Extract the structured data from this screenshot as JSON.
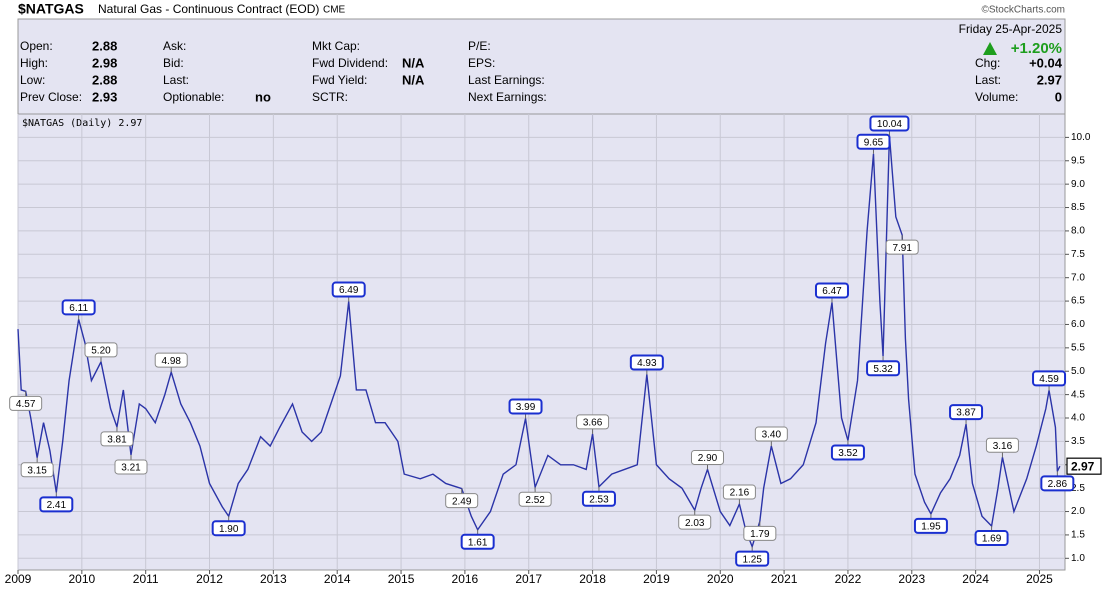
{
  "header": {
    "symbol": "$NATGAS",
    "name": "Natural Gas - Continuous Contract (EOD)",
    "exchange": "CME",
    "source": "©StockCharts.com",
    "date": "Friday  25-Apr-2025",
    "change_pct": "+1.20%",
    "fields": [
      [
        {
          "label": "Open:",
          "value": "2.88"
        },
        {
          "label": "High:",
          "value": "2.98"
        },
        {
          "label": "Low:",
          "value": "2.88"
        },
        {
          "label": "Prev Close:",
          "value": "2.93"
        }
      ],
      [
        {
          "label": "Ask:"
        },
        {
          "label": "Bid:"
        },
        {
          "label": "Last:"
        },
        {
          "label": "Optionable:",
          "value": "no"
        }
      ],
      [
        {
          "label": "Mkt Cap:"
        },
        {
          "label": "Fwd Dividend:",
          "value": "N/A"
        },
        {
          "label": "Fwd Yield:",
          "value": "N/A"
        },
        {
          "label": "SCTR:"
        }
      ],
      [
        {
          "label": "P/E:"
        },
        {
          "label": "EPS:"
        },
        {
          "label": "Last Earnings:"
        },
        {
          "label": "Next Earnings:"
        }
      ]
    ],
    "right_fields": [
      {
        "label": "Chg:",
        "value": "+0.04"
      },
      {
        "label": "Last:",
        "value": "2.97"
      },
      {
        "label": "Volume:",
        "value": "0"
      }
    ]
  },
  "chart_data": {
    "type": "line",
    "last_label": "2.97",
    "series": [
      {
        "name": "$NATGAS (Daily)",
        "color": "#2b34a8",
        "x": [
          2009.0,
          2009.05,
          2009.12,
          2009.2,
          2009.3,
          2009.4,
          2009.5,
          2009.6,
          2009.7,
          2009.8,
          2009.95,
          2010.05,
          2010.15,
          2010.3,
          2010.45,
          2010.55,
          2010.65,
          2010.77,
          2010.9,
          2011.0,
          2011.15,
          2011.3,
          2011.4,
          2011.55,
          2011.7,
          2011.85,
          2012.0,
          2012.2,
          2012.3,
          2012.45,
          2012.6,
          2012.8,
          2012.95,
          2013.1,
          2013.3,
          2013.45,
          2013.6,
          2013.75,
          2013.9,
          2014.05,
          2014.18,
          2014.3,
          2014.45,
          2014.6,
          2014.75,
          2014.95,
          2015.05,
          2015.3,
          2015.5,
          2015.7,
          2015.95,
          2016.1,
          2016.2,
          2016.4,
          2016.6,
          2016.8,
          2016.95,
          2017.1,
          2017.3,
          2017.5,
          2017.7,
          2017.9,
          2018.0,
          2018.1,
          2018.3,
          2018.5,
          2018.7,
          2018.85,
          2019.0,
          2019.2,
          2019.4,
          2019.6,
          2019.7,
          2019.8,
          2020.0,
          2020.15,
          2020.3,
          2020.4,
          2020.5,
          2020.62,
          2020.68,
          2020.8,
          2020.95,
          2021.1,
          2021.3,
          2021.5,
          2021.65,
          2021.75,
          2021.9,
          2022.0,
          2022.15,
          2022.3,
          2022.4,
          2022.5,
          2022.55,
          2022.65,
          2022.75,
          2022.85,
          2022.9,
          2022.95,
          2023.05,
          2023.2,
          2023.3,
          2023.45,
          2023.6,
          2023.75,
          2023.85,
          2023.95,
          2024.1,
          2024.25,
          2024.35,
          2024.42,
          2024.6,
          2024.8,
          2024.95,
          2025.1,
          2025.15,
          2025.25,
          2025.28,
          2025.32
        ],
        "values": [
          5.9,
          4.6,
          4.57,
          4.0,
          3.15,
          3.9,
          3.3,
          2.41,
          3.5,
          4.8,
          6.11,
          5.6,
          4.8,
          5.2,
          4.2,
          3.81,
          4.6,
          3.21,
          4.3,
          4.2,
          3.9,
          4.5,
          4.98,
          4.3,
          3.9,
          3.4,
          2.6,
          2.1,
          1.9,
          2.6,
          2.9,
          3.6,
          3.4,
          3.8,
          4.3,
          3.7,
          3.5,
          3.7,
          4.3,
          4.9,
          6.49,
          4.6,
          4.6,
          3.9,
          3.9,
          3.5,
          2.8,
          2.7,
          2.8,
          2.6,
          2.49,
          1.9,
          1.61,
          2.0,
          2.8,
          3.0,
          3.99,
          2.52,
          3.2,
          3.0,
          3.0,
          2.9,
          3.66,
          2.53,
          2.8,
          2.9,
          3.0,
          4.93,
          3.0,
          2.7,
          2.5,
          2.03,
          2.5,
          2.9,
          2.0,
          1.7,
          2.16,
          1.6,
          1.25,
          1.79,
          2.5,
          3.4,
          2.6,
          2.7,
          3.0,
          3.9,
          5.6,
          6.47,
          4.0,
          3.52,
          4.8,
          8.0,
          9.65,
          6.5,
          5.32,
          10.04,
          8.3,
          7.91,
          5.7,
          4.4,
          2.8,
          2.2,
          1.95,
          2.4,
          2.7,
          3.2,
          3.87,
          2.6,
          1.9,
          1.69,
          2.5,
          3.16,
          2.0,
          2.7,
          3.4,
          4.2,
          4.59,
          3.8,
          2.86,
          2.97
        ]
      }
    ],
    "annotations": [
      {
        "index": 2,
        "label": "4.57",
        "boxed": false
      },
      {
        "index": 4,
        "label": "3.15",
        "boxed": false
      },
      {
        "index": 7,
        "label": "2.41",
        "boxed": true
      },
      {
        "index": 10,
        "label": "6.11",
        "boxed": true
      },
      {
        "index": 13,
        "label": "5.20",
        "boxed": false
      },
      {
        "index": 15,
        "label": "3.81",
        "boxed": false
      },
      {
        "index": 17,
        "label": "3.21",
        "boxed": false
      },
      {
        "index": 22,
        "label": "4.98",
        "boxed": false
      },
      {
        "index": 28,
        "label": "1.90",
        "boxed": true
      },
      {
        "index": 40,
        "label": "6.49",
        "boxed": true
      },
      {
        "index": 50,
        "label": "2.49",
        "boxed": false
      },
      {
        "index": 52,
        "label": "1.61",
        "boxed": true
      },
      {
        "index": 56,
        "label": "3.99",
        "boxed": true
      },
      {
        "index": 57,
        "label": "2.52",
        "boxed": false
      },
      {
        "index": 62,
        "label": "3.66",
        "boxed": false
      },
      {
        "index": 63,
        "label": "2.53",
        "boxed": true
      },
      {
        "index": 67,
        "label": "4.93",
        "boxed": true
      },
      {
        "index": 71,
        "label": "2.03",
        "boxed": false
      },
      {
        "index": 73,
        "label": "2.90",
        "boxed": false
      },
      {
        "index": 76,
        "label": "2.16",
        "boxed": false
      },
      {
        "index": 78,
        "label": "1.25",
        "boxed": true
      },
      {
        "index": 79,
        "label": "1.79",
        "boxed": false
      },
      {
        "index": 81,
        "label": "3.40",
        "boxed": false
      },
      {
        "index": 87,
        "label": "6.47",
        "boxed": true
      },
      {
        "index": 89,
        "label": "3.52",
        "boxed": true
      },
      {
        "index": 92,
        "label": "9.65",
        "boxed": true
      },
      {
        "index": 94,
        "label": "5.32",
        "boxed": true
      },
      {
        "index": 95,
        "label": "10.04",
        "boxed": true
      },
      {
        "index": 97,
        "label": "7.91",
        "boxed": false
      },
      {
        "index": 102,
        "label": "1.95",
        "boxed": true
      },
      {
        "index": 106,
        "label": "3.87",
        "boxed": true
      },
      {
        "index": 109,
        "label": "1.69",
        "boxed": true
      },
      {
        "index": 111,
        "label": "3.16",
        "boxed": false
      },
      {
        "index": 116,
        "label": "4.59",
        "boxed": true
      },
      {
        "index": 118,
        "label": "2.86",
        "boxed": true
      }
    ],
    "xlim": [
      2009.0,
      2025.4
    ],
    "xticks": [
      2009,
      2010,
      2011,
      2012,
      2013,
      2014,
      2015,
      2016,
      2017,
      2018,
      2019,
      2020,
      2021,
      2022,
      2023,
      2024,
      2025
    ],
    "ylim": [
      0.75,
      10.5
    ],
    "yticks": [
      {
        "value": 1,
        "label": "1.0"
      },
      {
        "value": 1.5,
        "label": "1.5"
      },
      {
        "value": 2,
        "label": "2.0"
      },
      {
        "value": 2.5,
        "label": "2.5"
      },
      {
        "value": 3,
        "label": "3.0"
      },
      {
        "value": 3.5,
        "label": "3.5"
      },
      {
        "value": 4,
        "label": "4.0"
      },
      {
        "value": 4.5,
        "label": "4.5"
      },
      {
        "value": 5,
        "label": "5.0"
      },
      {
        "value": 5.5,
        "label": "5.5"
      },
      {
        "value": 6,
        "label": "6.0"
      },
      {
        "value": 6.5,
        "label": "6.5"
      },
      {
        "value": 7,
        "label": "7.0"
      },
      {
        "value": 7.5,
        "label": "7.5"
      },
      {
        "value": 8,
        "label": "8.0"
      },
      {
        "value": 8.5,
        "label": "8.5"
      },
      {
        "value": 9,
        "label": "9.0"
      },
      {
        "value": 9.5,
        "label": "9.5"
      },
      {
        "value": 10,
        "label": "10.0"
      }
    ],
    "grid": true
  }
}
